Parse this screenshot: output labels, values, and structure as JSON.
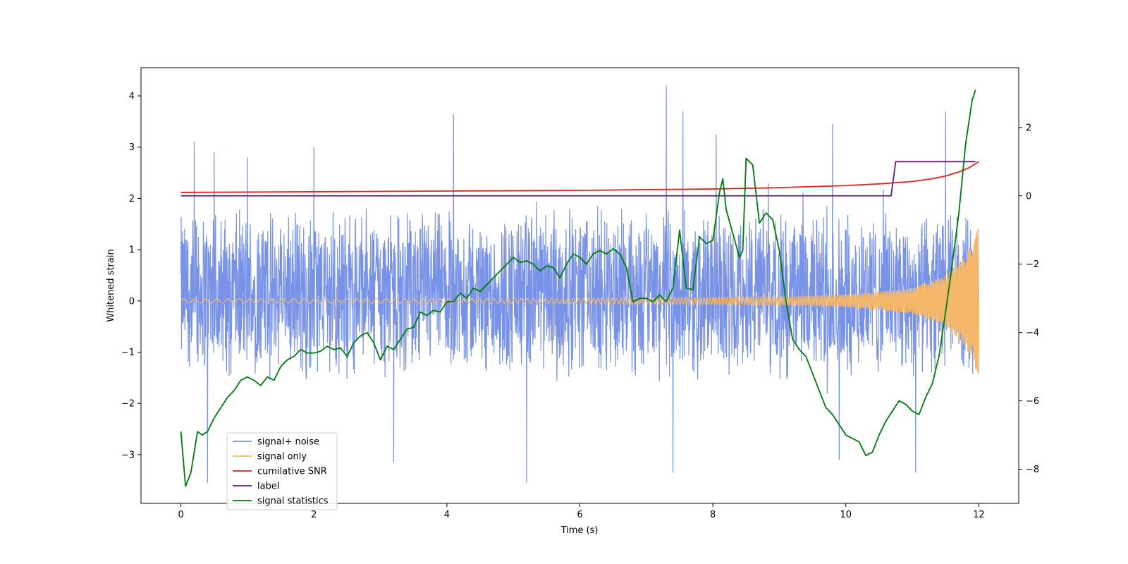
{
  "chart_data": {
    "type": "line",
    "xlabel": "Time (s)",
    "ylabel": "Whitened strain",
    "xlim": [
      -0.6,
      12.6
    ],
    "ylim": [
      -3.95,
      4.55
    ],
    "y2lim": [
      -9.0,
      3.75
    ],
    "xticks": [
      0,
      2,
      4,
      6,
      8,
      10,
      12
    ],
    "yticks": [
      -3,
      -2,
      -1,
      0,
      1,
      2,
      3,
      4
    ],
    "y2ticks": [
      -8,
      -6,
      -4,
      -2,
      0,
      2
    ],
    "legend_position": "lower-left",
    "grid": false,
    "noise_envelope": {
      "x": [
        0,
        1,
        2,
        3,
        4,
        5,
        6,
        7,
        8,
        9,
        10,
        11,
        12
      ],
      "typical_low": [
        -1.6,
        -1.6,
        -1.6,
        -1.6,
        -1.6,
        -1.6,
        -1.6,
        -1.6,
        -1.6,
        -1.6,
        -1.6,
        -1.6,
        -1.6
      ],
      "typical_high": [
        1.9,
        1.9,
        1.9,
        1.9,
        1.9,
        1.9,
        1.9,
        1.9,
        1.9,
        1.9,
        1.9,
        1.9,
        1.9
      ]
    },
    "noise_peaks": [
      {
        "x": 0.2,
        "y": 3.1
      },
      {
        "x": 0.5,
        "y": 2.9
      },
      {
        "x": 1.0,
        "y": 2.8
      },
      {
        "x": 2.0,
        "y": 3.0
      },
      {
        "x": 4.1,
        "y": 3.65
      },
      {
        "x": 7.3,
        "y": 4.2
      },
      {
        "x": 7.55,
        "y": 3.7
      },
      {
        "x": 8.05,
        "y": 3.25
      },
      {
        "x": 9.8,
        "y": 3.45
      },
      {
        "x": 11.5,
        "y": 3.7
      },
      {
        "x": 11.05,
        "y": -3.35
      },
      {
        "x": 5.2,
        "y": -3.55
      },
      {
        "x": 0.4,
        "y": -3.55
      },
      {
        "x": 3.2,
        "y": -3.15
      },
      {
        "x": 7.4,
        "y": -3.35
      },
      {
        "x": 9.9,
        "y": -3.1
      }
    ],
    "series": [
      {
        "name": "signal+ noise",
        "axis": "left",
        "color": "#7892e8",
        "style": "noise"
      },
      {
        "name": "signal only",
        "axis": "left",
        "color": "#f5b86a",
        "style": "chirp",
        "amplitude_x": [
          0,
          6,
          9,
          10,
          11,
          11.5,
          11.8,
          12
        ],
        "amplitude": [
          0.04,
          0.05,
          0.08,
          0.12,
          0.25,
          0.5,
          0.9,
          1.45
        ]
      },
      {
        "name": "cumilative SNR",
        "axis": "right",
        "color": "#e8201a",
        "x": [
          0,
          2,
          4,
          6,
          8,
          9,
          10,
          10.5,
          11,
          11.3,
          11.5,
          11.7,
          11.85,
          12
        ],
        "y": [
          0.1,
          0.12,
          0.14,
          0.16,
          0.2,
          0.24,
          0.3,
          0.35,
          0.42,
          0.5,
          0.58,
          0.7,
          0.82,
          1.0
        ]
      },
      {
        "name": "label",
        "axis": "right",
        "color": "#6a1a7a",
        "x": [
          0,
          10.68,
          10.75,
          11.95
        ],
        "y": [
          0.0,
          0.0,
          1.0,
          1.0
        ]
      },
      {
        "name": "signal statistics",
        "axis": "right",
        "color": "#007a0a",
        "x": [
          0,
          0.07,
          0.15,
          0.25,
          0.32,
          0.4,
          0.5,
          0.6,
          0.7,
          0.8,
          0.9,
          1.0,
          1.1,
          1.2,
          1.3,
          1.4,
          1.5,
          1.6,
          1.7,
          1.8,
          1.9,
          2.0,
          2.1,
          2.2,
          2.3,
          2.4,
          2.5,
          2.6,
          2.7,
          2.8,
          2.9,
          3.0,
          3.1,
          3.2,
          3.3,
          3.4,
          3.5,
          3.6,
          3.7,
          3.8,
          3.9,
          4.0,
          4.1,
          4.2,
          4.3,
          4.4,
          4.5,
          4.6,
          4.7,
          4.8,
          4.9,
          5.0,
          5.1,
          5.2,
          5.3,
          5.4,
          5.5,
          5.6,
          5.7,
          5.8,
          5.9,
          6.0,
          6.1,
          6.2,
          6.3,
          6.4,
          6.5,
          6.6,
          6.7,
          6.8,
          6.9,
          7.0,
          7.1,
          7.2,
          7.3,
          7.4,
          7.5,
          7.6,
          7.7,
          7.8,
          7.9,
          8.0,
          8.1,
          8.15,
          8.2,
          8.3,
          8.4,
          8.45,
          8.5,
          8.6,
          8.7,
          8.8,
          8.9,
          9.0,
          9.1,
          9.2,
          9.3,
          9.4,
          9.5,
          9.6,
          9.7,
          9.8,
          9.9,
          10.0,
          10.1,
          10.2,
          10.3,
          10.4,
          10.5,
          10.6,
          10.7,
          10.8,
          10.9,
          11.0,
          11.1,
          11.2,
          11.3,
          11.4,
          11.5,
          11.6,
          11.7,
          11.8,
          11.9,
          11.95
        ],
        "y": [
          -6.9,
          -8.5,
          -8.1,
          -6.9,
          -7.0,
          -6.9,
          -6.5,
          -6.2,
          -5.9,
          -5.7,
          -5.4,
          -5.3,
          -5.4,
          -5.55,
          -5.3,
          -5.4,
          -5.0,
          -4.8,
          -4.7,
          -4.5,
          -4.6,
          -4.6,
          -4.55,
          -4.4,
          -4.5,
          -4.45,
          -4.7,
          -4.3,
          -4.1,
          -4.0,
          -4.3,
          -4.8,
          -4.4,
          -4.5,
          -4.2,
          -3.9,
          -3.85,
          -3.4,
          -3.5,
          -3.35,
          -3.4,
          -3.1,
          -3.1,
          -2.85,
          -3.0,
          -2.7,
          -2.8,
          -2.6,
          -2.4,
          -2.2,
          -2.0,
          -1.8,
          -1.95,
          -1.9,
          -2.0,
          -2.2,
          -2.05,
          -2.1,
          -2.4,
          -2.0,
          -1.7,
          -1.8,
          -2.0,
          -1.7,
          -1.6,
          -1.7,
          -1.55,
          -1.7,
          -2.1,
          -3.1,
          -3.0,
          -3.0,
          -3.1,
          -2.9,
          -3.1,
          -2.7,
          -1.0,
          -2.7,
          -2.75,
          -1.2,
          -1.4,
          -1.3,
          0.1,
          0.5,
          -0.4,
          -1.1,
          -1.8,
          -1.6,
          1.1,
          0.9,
          -0.8,
          -0.5,
          -0.7,
          -1.6,
          -3.1,
          -4.2,
          -4.5,
          -4.7,
          -5.2,
          -5.7,
          -6.2,
          -6.4,
          -6.7,
          -7.0,
          -7.1,
          -7.2,
          -7.6,
          -7.5,
          -7.0,
          -6.6,
          -6.3,
          -6.0,
          -6.1,
          -6.3,
          -6.4,
          -5.9,
          -5.5,
          -4.7,
          -3.4,
          -2.0,
          -0.5,
          1.5,
          2.8,
          3.1
        ]
      }
    ]
  }
}
